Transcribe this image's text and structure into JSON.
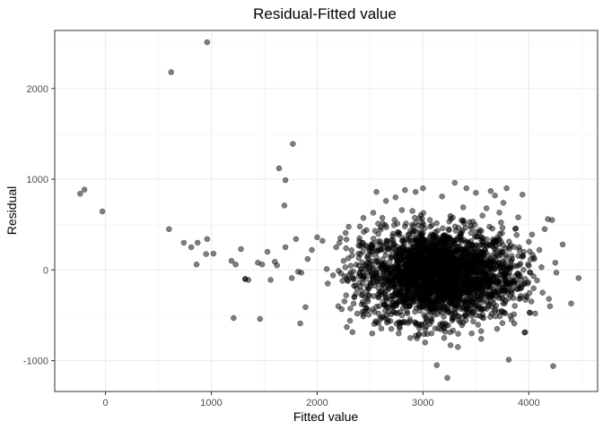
{
  "chart_data": {
    "type": "scatter",
    "title": "Residual-Fitted value",
    "xlabel": "Fitted value",
    "ylabel": "Residual",
    "xlim": [
      -480,
      4650
    ],
    "ylim": [
      -1340,
      2640
    ],
    "xticks": [
      0,
      1000,
      2000,
      3000,
      4000
    ],
    "yticks": [
      -1000,
      0,
      1000,
      2000
    ],
    "xtick_labels": [
      "0",
      "1000",
      "2000",
      "3000",
      "4000"
    ],
    "ytick_labels": [
      "-1000",
      "0",
      "1000",
      "2000"
    ],
    "grid": true,
    "legend": "none",
    "point_color": "#000000",
    "point_opacity": 0.5,
    "cluster": {
      "description_note": "dense central cloud of points",
      "center": [
        3150,
        -50
      ],
      "spread": [
        360,
        250
      ],
      "approx_count": 2600
    },
    "points": [
      [
        -240,
        840
      ],
      [
        -200,
        885
      ],
      [
        -30,
        645
      ],
      [
        620,
        2180
      ],
      [
        960,
        2510
      ],
      [
        600,
        450
      ],
      [
        740,
        300
      ],
      [
        810,
        250
      ],
      [
        870,
        300
      ],
      [
        860,
        60
      ],
      [
        960,
        340
      ],
      [
        1020,
        180
      ],
      [
        950,
        175
      ],
      [
        1190,
        100
      ],
      [
        1230,
        60
      ],
      [
        1280,
        230
      ],
      [
        1320,
        -100
      ],
      [
        1350,
        -110
      ],
      [
        1440,
        80
      ],
      [
        1480,
        60
      ],
      [
        1530,
        200
      ],
      [
        1560,
        -110
      ],
      [
        1600,
        90
      ],
      [
        1620,
        50
      ],
      [
        1640,
        1120
      ],
      [
        1690,
        710
      ],
      [
        1700,
        990
      ],
      [
        1770,
        1390
      ],
      [
        1800,
        340
      ],
      [
        1820,
        -20
      ],
      [
        1850,
        -30
      ],
      [
        1890,
        -410
      ],
      [
        1910,
        120
      ],
      [
        1950,
        220
      ],
      [
        1210,
        -530
      ],
      [
        1460,
        -540
      ],
      [
        1840,
        -590
      ],
      [
        1320,
        -100
      ],
      [
        1700,
        250
      ],
      [
        1760,
        -90
      ],
      [
        2000,
        360
      ],
      [
        2050,
        320
      ],
      [
        2090,
        10
      ],
      [
        2150,
        -60
      ],
      [
        2180,
        250
      ],
      [
        2210,
        300
      ],
      [
        2240,
        -120
      ],
      [
        2280,
        -630
      ],
      [
        2310,
        -560
      ],
      [
        2330,
        160
      ],
      [
        2390,
        180
      ],
      [
        2420,
        -280
      ],
      [
        2460,
        270
      ],
      [
        2480,
        160
      ],
      [
        2520,
        -700
      ],
      [
        2530,
        630
      ],
      [
        2560,
        860
      ],
      [
        2580,
        -590
      ],
      [
        2600,
        470
      ],
      [
        2620,
        510
      ],
      [
        2650,
        760
      ],
      [
        2700,
        -650
      ],
      [
        2740,
        800
      ],
      [
        2770,
        -700
      ],
      [
        2800,
        660
      ],
      [
        2830,
        880
      ],
      [
        2880,
        -750
      ],
      [
        2900,
        650
      ],
      [
        2930,
        860
      ],
      [
        2960,
        -720
      ],
      [
        3000,
        900
      ],
      [
        3020,
        -800
      ],
      [
        3080,
        -700
      ],
      [
        3130,
        -1050
      ],
      [
        3180,
        810
      ],
      [
        3200,
        -750
      ],
      [
        3230,
        -1190
      ],
      [
        3260,
        -830
      ],
      [
        3300,
        960
      ],
      [
        3330,
        -850
      ],
      [
        3380,
        690
      ],
      [
        3410,
        900
      ],
      [
        3460,
        -700
      ],
      [
        3500,
        850
      ],
      [
        3550,
        -760
      ],
      [
        3600,
        680
      ],
      [
        3640,
        870
      ],
      [
        3680,
        820
      ],
      [
        3700,
        -650
      ],
      [
        3760,
        740
      ],
      [
        3790,
        900
      ],
      [
        3810,
        -990
      ],
      [
        3830,
        270
      ],
      [
        3860,
        -490
      ],
      [
        3900,
        580
      ],
      [
        3940,
        830
      ],
      [
        3970,
        -330
      ],
      [
        4000,
        310
      ],
      [
        4030,
        390
      ],
      [
        4060,
        -480
      ],
      [
        4100,
        220
      ],
      [
        4130,
        -250
      ],
      [
        4150,
        450
      ],
      [
        4180,
        560
      ],
      [
        4200,
        -400
      ],
      [
        4220,
        550
      ],
      [
        4230,
        -1060
      ],
      [
        4250,
        80
      ],
      [
        4260,
        -30
      ],
      [
        4320,
        280
      ],
      [
        4400,
        -370
      ],
      [
        4470,
        -90
      ],
      [
        4190,
        -320
      ],
      [
        4120,
        30
      ],
      [
        4050,
        120
      ],
      [
        3990,
        -150
      ],
      [
        3920,
        70
      ],
      [
        2200,
        -400
      ],
      [
        2100,
        -150
      ],
      [
        2250,
        100
      ],
      [
        2350,
        -300
      ],
      [
        2400,
        350
      ],
      [
        2450,
        -450
      ],
      [
        2500,
        200
      ]
    ]
  }
}
